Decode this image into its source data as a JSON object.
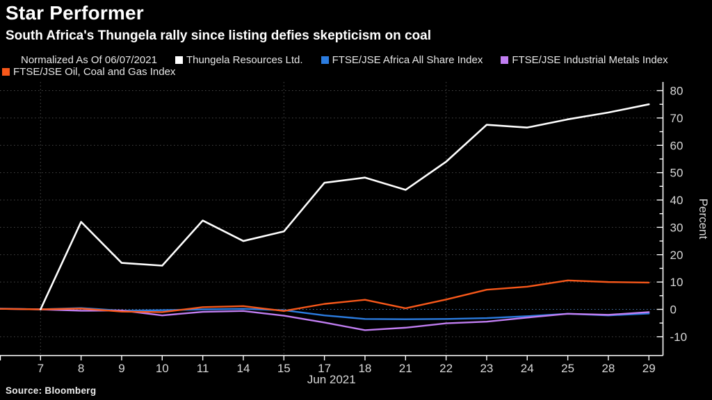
{
  "header": {
    "title": "Star Performer",
    "subtitle": "South Africa's Thungela rally since listing defies skepticism on coal"
  },
  "legend": {
    "note": "Normalized As Of 06/07/2021",
    "items": [
      {
        "label": "Thungela Resources Ltd.",
        "color": "#ffffff"
      },
      {
        "label": "FTSE/JSE Africa All Share Index",
        "color": "#2b7ce0"
      },
      {
        "label": "FTSE/JSE Industrial Metals Index",
        "color": "#c17ef2"
      },
      {
        "label": "FTSE/JSE Oil, Coal and Gas Index",
        "color": "#f8581a"
      }
    ]
  },
  "chart_data": {
    "type": "line",
    "title": "Star Performer",
    "subtitle": "South Africa's Thungela rally since listing defies skepticism on coal",
    "normalized_note": "Normalized As Of 06/07/2021",
    "xlabel": "Jun 2021",
    "ylabel": "Percent",
    "ylim": [
      -10,
      80
    ],
    "y_major_ticks": [
      80,
      70,
      60,
      50,
      40,
      30,
      20,
      10,
      0,
      -10
    ],
    "y_minor_step": 5,
    "x_tick_labels": [
      "7",
      "8",
      "9",
      "10",
      "11",
      "14",
      "15",
      "17",
      "18",
      "21",
      "22",
      "23",
      "24",
      "25",
      "28",
      "29"
    ],
    "lead_in_day": "4",
    "grid_vertical_days": [
      "7",
      "15",
      "22"
    ],
    "grid_style": "dotted",
    "legend_position": "top",
    "colors": {
      "background": "#000000",
      "grid": "#4a4a4a",
      "baseline_grid": "#4d7bb5",
      "axis": "#ffffff",
      "tick_label": "#d9d9d9"
    },
    "series": [
      {
        "name": "Thungela Resources Ltd.",
        "color": "#ffffff",
        "x": [
          "7",
          "8",
          "9",
          "10",
          "11",
          "14",
          "15",
          "17",
          "18",
          "21",
          "22",
          "23",
          "24",
          "25",
          "28",
          "29"
        ],
        "values": [
          0,
          32,
          17,
          16,
          32.5,
          25,
          28.5,
          46.3,
          48.2,
          43.7,
          54,
          67.5,
          66.5,
          69.5,
          72,
          75
        ]
      },
      {
        "name": "FTSE/JSE Africa All Share Index",
        "color": "#2b7ce0",
        "x": [
          "4",
          "7",
          "8",
          "9",
          "10",
          "11",
          "14",
          "15",
          "17",
          "18",
          "21",
          "22",
          "23",
          "24",
          "25",
          "28",
          "29"
        ],
        "values": [
          0.3,
          0,
          0.5,
          -0.5,
          -0.3,
          0,
          0.2,
          -0.3,
          -2.2,
          -3.5,
          -3.6,
          -3.5,
          -3.2,
          -2.5,
          -1.6,
          -2.2,
          -1.5
        ]
      },
      {
        "name": "FTSE/JSE Industrial Metals Index",
        "color": "#c17ef2",
        "x": [
          "4",
          "7",
          "8",
          "9",
          "10",
          "11",
          "14",
          "15",
          "17",
          "18",
          "21",
          "22",
          "23",
          "24",
          "25",
          "28",
          "29"
        ],
        "values": [
          0.2,
          0,
          -0.5,
          -0.4,
          -2.2,
          -0.9,
          -0.6,
          -2.3,
          -4.8,
          -7.6,
          -6.7,
          -5.1,
          -4.5,
          -3.0,
          -1.6,
          -2.0,
          -1.0
        ]
      },
      {
        "name": "FTSE/JSE Oil, Coal and Gas Index",
        "color": "#f8581a",
        "x": [
          "4",
          "7",
          "8",
          "9",
          "10",
          "11",
          "14",
          "15",
          "17",
          "18",
          "21",
          "22",
          "23",
          "24",
          "25",
          "28",
          "29"
        ],
        "values": [
          0.2,
          0,
          0.3,
          -0.8,
          -1.0,
          0.8,
          1.2,
          -0.6,
          2.0,
          3.5,
          0.4,
          3.6,
          7.2,
          8.3,
          10.6,
          10.0,
          9.8
        ]
      }
    ]
  },
  "source": "Source: Bloomberg"
}
